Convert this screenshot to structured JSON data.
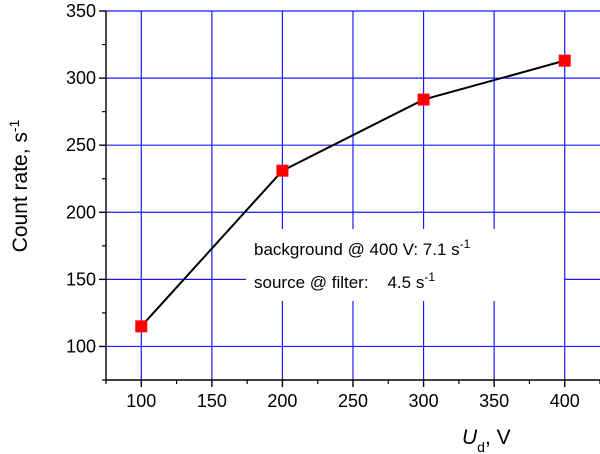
{
  "chart_data": {
    "type": "line",
    "x": [
      100,
      200,
      300,
      400
    ],
    "series": [
      {
        "values": [
          115,
          231,
          284,
          313
        ]
      }
    ],
    "xlim": [
      75,
      425
    ],
    "ylim": [
      75,
      350
    ],
    "xticks": [
      100,
      150,
      200,
      250,
      300,
      350,
      400
    ],
    "yticks": [
      100,
      150,
      200,
      250,
      300,
      350
    ],
    "xtick_labels": [
      "100",
      "150",
      "200",
      "250",
      "300",
      "350",
      "400"
    ],
    "ytick_labels": [
      "100",
      "150",
      "200",
      "250",
      "300",
      "350"
    ],
    "xlabel": {
      "main": "U",
      "sub": "d",
      "suffix": ", V"
    },
    "ylabel": {
      "main": "Count rate, s",
      "sup": "-1"
    },
    "grid": true,
    "annotations": [
      {
        "text": "background @ 400 V: 7.1 s",
        "sup": "-1"
      },
      {
        "text": "source @ filter:    4.5 s",
        "sup": "-1"
      }
    ],
    "colors": {
      "grid": "#1a1aff",
      "line": "#000000",
      "marker": "#ff0000",
      "axis": "#000000"
    }
  }
}
